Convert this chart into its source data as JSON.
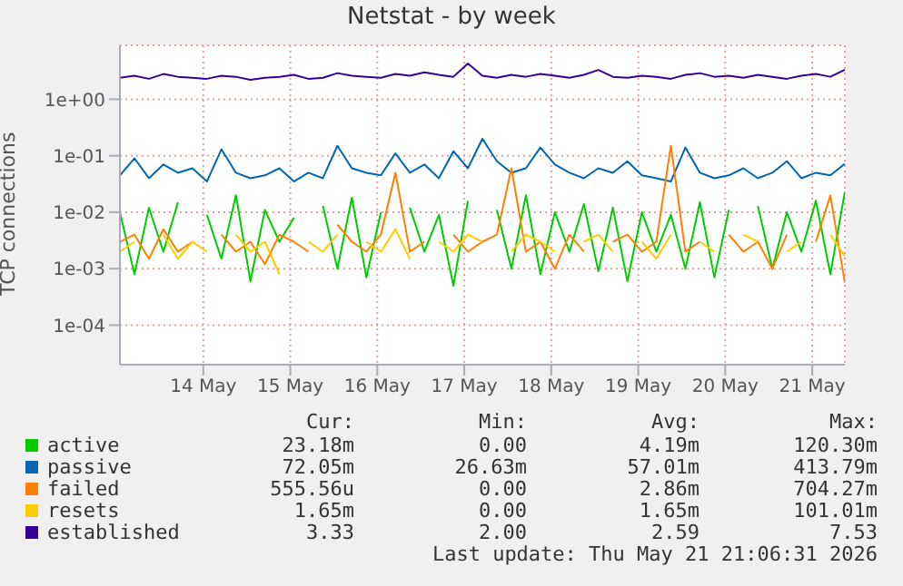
{
  "chart_data": {
    "type": "line",
    "title": "Netstat - by week",
    "ylabel": "TCP connections",
    "log": "y",
    "grid": true,
    "legend": "bottom",
    "marker": "none",
    "line_style": "solid",
    "xlim": [
      "2026-05-13T01:00",
      "2026-05-21T09:00"
    ],
    "xticks": [
      {
        "value": "2026-05-14T00:00",
        "label": "14 May"
      },
      {
        "value": "2026-05-15T00:00",
        "label": "15 May"
      },
      {
        "value": "2026-05-16T00:00",
        "label": "16 May"
      },
      {
        "value": "2026-05-17T00:00",
        "label": "17 May"
      },
      {
        "value": "2026-05-18T00:00",
        "label": "18 May"
      },
      {
        "value": "2026-05-19T00:00",
        "label": "19 May"
      },
      {
        "value": "2026-05-20T00:00",
        "label": "20 May"
      },
      {
        "value": "2026-05-21T00:00",
        "label": "21 May"
      }
    ],
    "ylim": [
      2e-05,
      9
    ],
    "yticks": [
      {
        "value": 0.0001,
        "label": "1e-04"
      },
      {
        "value": 0.001,
        "label": "1e-03"
      },
      {
        "value": 0.01,
        "label": "1e-02"
      },
      {
        "value": 0.1,
        "label": "1e-01"
      },
      {
        "value": 1,
        "label": "1e+00"
      }
    ],
    "x": [
      "2026-05-13T01:00",
      "2026-05-13T05:00",
      "2026-05-13T09:00",
      "2026-05-13T13:00",
      "2026-05-13T17:00",
      "2026-05-13T21:00",
      "2026-05-14T01:00",
      "2026-05-14T05:00",
      "2026-05-14T09:00",
      "2026-05-14T13:00",
      "2026-05-14T17:00",
      "2026-05-14T21:00",
      "2026-05-15T01:00",
      "2026-05-15T05:00",
      "2026-05-15T09:00",
      "2026-05-15T13:00",
      "2026-05-15T17:00",
      "2026-05-15T21:00",
      "2026-05-16T01:00",
      "2026-05-16T05:00",
      "2026-05-16T09:00",
      "2026-05-16T13:00",
      "2026-05-16T17:00",
      "2026-05-16T21:00",
      "2026-05-17T01:00",
      "2026-05-17T05:00",
      "2026-05-17T09:00",
      "2026-05-17T13:00",
      "2026-05-17T17:00",
      "2026-05-17T21:00",
      "2026-05-18T01:00",
      "2026-05-18T05:00",
      "2026-05-18T09:00",
      "2026-05-18T13:00",
      "2026-05-18T17:00",
      "2026-05-18T21:00",
      "2026-05-19T01:00",
      "2026-05-19T05:00",
      "2026-05-19T09:00",
      "2026-05-19T13:00",
      "2026-05-19T17:00",
      "2026-05-19T21:00",
      "2026-05-20T01:00",
      "2026-05-20T05:00",
      "2026-05-20T09:00",
      "2026-05-20T13:00",
      "2026-05-20T17:00",
      "2026-05-20T21:00",
      "2026-05-21T01:00",
      "2026-05-21T05:00",
      "2026-05-21T09:00"
    ],
    "series": [
      {
        "name": "active",
        "color": "#00cc00",
        "values": [
          0.01,
          0.0008,
          0.012,
          0.002,
          0.015,
          null,
          0.009,
          0.0015,
          0.02,
          0.0006,
          0.011,
          0.003,
          0.008,
          null,
          0.013,
          0.001,
          0.018,
          0.0007,
          0.01,
          null,
          0.012,
          0.002,
          0.009,
          0.0005,
          0.016,
          null,
          0.011,
          0.001,
          0.02,
          0.0008,
          0.01,
          0.002,
          0.014,
          0.0009,
          0.012,
          0.0006,
          0.01,
          0.002,
          0.009,
          0.001,
          0.015,
          0.0007,
          0.011,
          null,
          0.013,
          0.001,
          0.01,
          0.002,
          0.016,
          0.0008,
          0.023
        ]
      },
      {
        "name": "passive",
        "color": "#0066b3",
        "values": [
          0.045,
          0.09,
          0.04,
          0.07,
          0.05,
          0.06,
          0.035,
          0.13,
          0.05,
          0.04,
          0.045,
          0.06,
          0.035,
          0.05,
          0.04,
          0.15,
          0.06,
          0.05,
          0.045,
          0.11,
          0.05,
          0.07,
          0.04,
          0.12,
          0.06,
          0.2,
          0.08,
          0.05,
          0.06,
          0.14,
          0.07,
          0.05,
          0.04,
          0.06,
          0.05,
          0.08,
          0.045,
          0.04,
          0.035,
          0.14,
          0.05,
          0.04,
          0.045,
          0.06,
          0.04,
          0.05,
          0.08,
          0.04,
          0.05,
          0.045,
          0.072
        ]
      },
      {
        "name": "failed",
        "color": "#ff8000",
        "values": [
          0.003,
          0.004,
          0.0015,
          0.005,
          0.002,
          0.003,
          null,
          0.004,
          0.002,
          0.003,
          0.0012,
          0.004,
          0.003,
          0.002,
          null,
          0.006,
          0.003,
          0.002,
          0.004,
          0.05,
          0.002,
          0.003,
          null,
          0.004,
          0.002,
          0.003,
          0.004,
          0.06,
          0.002,
          0.003,
          0.001,
          0.004,
          0.002,
          null,
          0.003,
          0.004,
          0.002,
          0.003,
          0.15,
          0.002,
          0.003,
          null,
          0.004,
          0.002,
          0.003,
          0.001,
          0.004,
          null,
          0.003,
          0.02,
          0.00056
        ]
      },
      {
        "name": "resets",
        "color": "#ffcc00",
        "values": [
          0.002,
          0.003,
          null,
          0.004,
          0.0015,
          0.003,
          0.002,
          null,
          0.004,
          0.002,
          0.003,
          0.0008,
          null,
          0.003,
          0.002,
          0.004,
          null,
          0.003,
          0.002,
          0.005,
          0.0015,
          null,
          0.003,
          0.002,
          0.004,
          0.003,
          null,
          0.002,
          0.004,
          0.003,
          0.002,
          null,
          0.003,
          0.004,
          0.002,
          null,
          0.003,
          0.0015,
          0.004,
          null,
          0.003,
          0.002,
          null,
          0.004,
          0.003,
          null,
          0.002,
          0.003,
          null,
          0.004,
          0.00165
        ]
      },
      {
        "name": "established",
        "color": "#330099",
        "values": [
          2.4,
          2.6,
          2.3,
          2.8,
          2.5,
          2.4,
          2.3,
          2.6,
          2.5,
          2.2,
          2.4,
          2.5,
          2.7,
          2.3,
          2.4,
          2.9,
          2.6,
          2.5,
          2.4,
          2.8,
          2.6,
          3.0,
          2.7,
          2.5,
          4.3,
          2.6,
          2.4,
          2.7,
          2.5,
          2.8,
          2.6,
          2.4,
          2.7,
          3.3,
          2.5,
          2.4,
          2.6,
          2.5,
          2.3,
          2.7,
          2.9,
          2.5,
          2.6,
          2.4,
          2.7,
          2.5,
          2.3,
          2.6,
          2.8,
          2.5,
          3.33
        ]
      }
    ],
    "annotations": [
      "Cur:",
      "Min:",
      "Avg:",
      "Max:",
      "23.18m",
      "0.00",
      "4.19m",
      "120.30m",
      "72.05m",
      "26.63m",
      "57.01m",
      "413.79m",
      "555.56u",
      "0.00",
      "2.86m",
      "704.27m",
      "1.65m",
      "0.00",
      "1.65m",
      "101.01m",
      "3.33",
      "2.00",
      "2.59",
      "7.53",
      "Last update: Thu May 21 21:06:31 2026"
    ]
  }
}
